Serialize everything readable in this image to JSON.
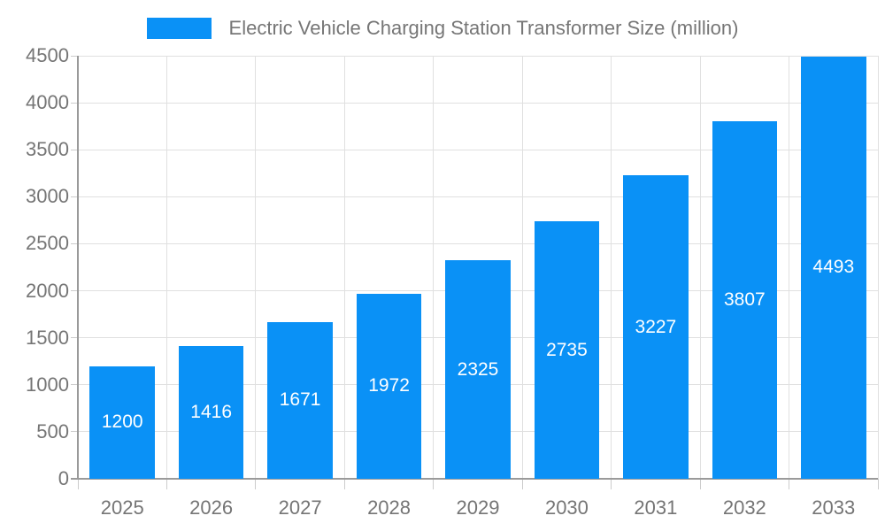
{
  "legend": {
    "label": "Electric Vehicle Charging Station Transformer Size (million)"
  },
  "chart_data": {
    "type": "bar",
    "title": "Electric Vehicle Charging Station Transformer Size (million)",
    "categories": [
      "2025",
      "2026",
      "2027",
      "2028",
      "2029",
      "2030",
      "2031",
      "2032",
      "2033"
    ],
    "values": [
      1200,
      1416,
      1671,
      1972,
      2325,
      2735,
      3227,
      3807,
      4493
    ],
    "xlabel": "",
    "ylabel": "",
    "ylim": [
      0,
      4500
    ],
    "ytick_step": 500,
    "grid": true,
    "legend_position": "top",
    "bar_color": "#0a91f6",
    "bar_label_color": "#ffffff",
    "axis_text_color": "#757575",
    "gridline_color": "#e0e0e0",
    "axis_line_color": "#9a9a9a"
  }
}
